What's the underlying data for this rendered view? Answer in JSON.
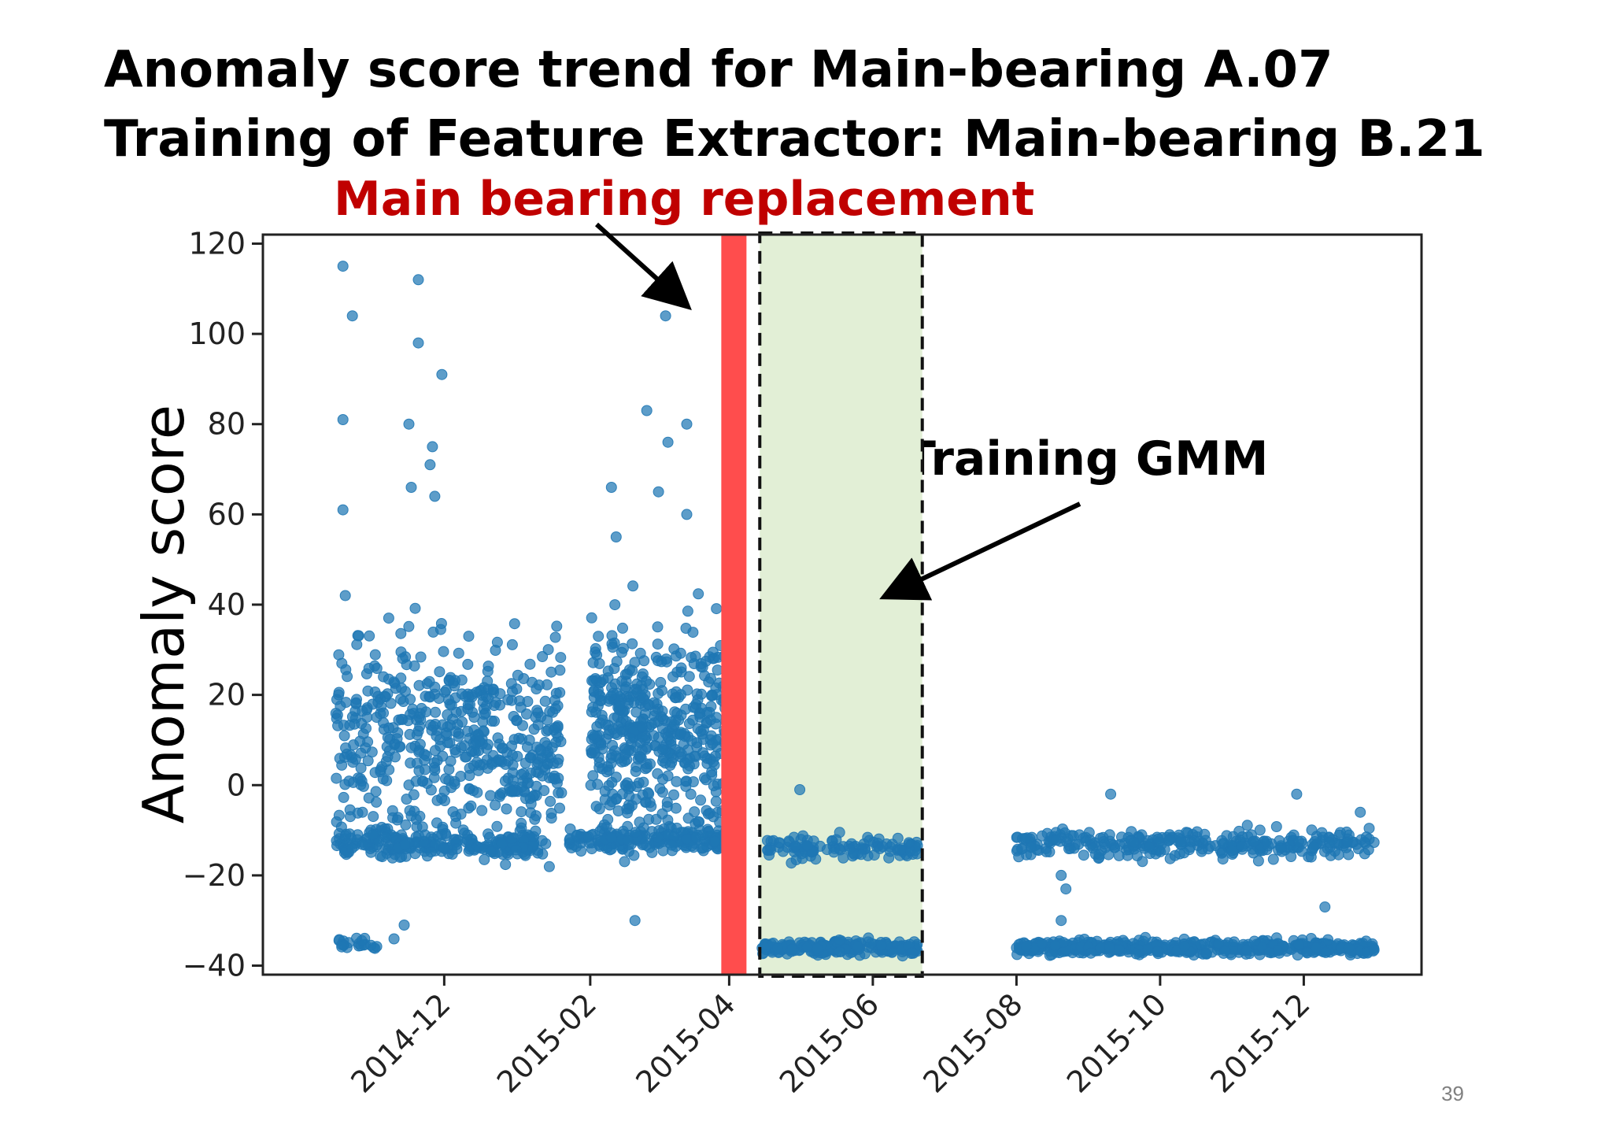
{
  "titles": {
    "line1": "Anomaly score trend for Main-bearing A.07",
    "line2": "Training of Feature Extractor: Main-bearing B.21"
  },
  "annotations": {
    "replacement": "Main bearing replacement",
    "training_gmm": "Training GMM"
  },
  "page_number": "39",
  "colors": {
    "points": "#1f77b4",
    "replacement_line": "#ff4d4d",
    "training_region": "#e2efd6",
    "replacement_text": "#c00000"
  },
  "chart_data": {
    "type": "scatter",
    "ylabel": "Anomaly score",
    "xlabel": "",
    "ylim": [
      -42,
      122
    ],
    "yticks": [
      120,
      100,
      80,
      60,
      40,
      20,
      0,
      -20,
      -40
    ],
    "ytick_labels": [
      "120",
      "100",
      "80",
      "60",
      "40",
      "20",
      "0",
      "−20",
      "−40"
    ],
    "xlim": [
      "2014-09-15",
      "2016-01-20"
    ],
    "xticks": [
      "2014-12-01",
      "2015-02-01",
      "2015-04-01",
      "2015-06-01",
      "2015-08-01",
      "2015-10-01",
      "2015-12-01"
    ],
    "xtick_labels": [
      "2014-12",
      "2015-02",
      "2015-04",
      "2015-06",
      "2015-08",
      "2015-10",
      "2015-12"
    ],
    "replacement_date": "2015-04-03",
    "training_gmm_range": [
      "2015-04-14",
      "2015-06-22"
    ],
    "grid": false,
    "series": [
      {
        "values_description": "",
        "clusters": [
          {
            "x_start": "2014-10-16",
            "x_end": "2015-01-20",
            "y_center": 10,
            "y_spread": 22,
            "count": 520
          },
          {
            "x_start": "2014-10-16",
            "x_end": "2015-01-10",
            "y_center": -13,
            "y_spread": 3,
            "count": 240
          },
          {
            "x_start": "2014-10-16",
            "x_end": "2014-11-10",
            "y_center": -35,
            "y_spread": 1.2,
            "count": 22
          },
          {
            "x_start": "2015-01-23",
            "x_end": "2015-04-05",
            "y_center": -12,
            "y_spread": 2.5,
            "count": 200
          },
          {
            "x_start": "2015-02-01",
            "x_end": "2015-04-05",
            "y_center": 12,
            "y_spread": 22,
            "count": 520
          },
          {
            "x_start": "2015-04-15",
            "x_end": "2015-06-20",
            "y_center": -14,
            "y_spread": 2.5,
            "count": 110
          },
          {
            "x_start": "2015-04-15",
            "x_end": "2015-06-20",
            "y_center": -36,
            "y_spread": 1.5,
            "count": 220
          },
          {
            "x_start": "2015-08-01",
            "x_end": "2016-01-01",
            "y_center": -13,
            "y_spread": 3,
            "count": 300
          },
          {
            "x_start": "2015-08-01",
            "x_end": "2016-01-01",
            "y_center": -36,
            "y_spread": 1.5,
            "count": 520
          }
        ],
        "points": [
          [
            "2014-10-19",
            115
          ],
          [
            "2014-10-23",
            104
          ],
          [
            "2014-10-19",
            81
          ],
          [
            "2014-10-19",
            61
          ],
          [
            "2014-11-20",
            112
          ],
          [
            "2014-11-20",
            98
          ],
          [
            "2014-11-30",
            91
          ],
          [
            "2014-11-16",
            80
          ],
          [
            "2014-11-26",
            75
          ],
          [
            "2014-11-25",
            71
          ],
          [
            "2014-11-17",
            66
          ],
          [
            "2014-11-27",
            64
          ],
          [
            "2015-03-05",
            104
          ],
          [
            "2015-02-25",
            83
          ],
          [
            "2015-03-06",
            76
          ],
          [
            "2015-03-14",
            80
          ],
          [
            "2015-02-10",
            66
          ],
          [
            "2015-03-02",
            65
          ],
          [
            "2015-03-14",
            60
          ],
          [
            "2015-02-12",
            55
          ],
          [
            "2014-10-20",
            42
          ],
          [
            "2015-04-01",
            44
          ],
          [
            "2015-02-20",
            -30
          ],
          [
            "2014-11-14",
            -31
          ],
          [
            "2015-05-01",
            -1
          ],
          [
            "2015-09-10",
            -2
          ],
          [
            "2015-11-28",
            -2
          ],
          [
            "2015-12-25",
            -6
          ],
          [
            "2015-08-20",
            -20
          ],
          [
            "2015-08-22",
            -23
          ],
          [
            "2015-12-10",
            -27
          ],
          [
            "2015-08-20",
            -30
          ]
        ]
      }
    ]
  }
}
